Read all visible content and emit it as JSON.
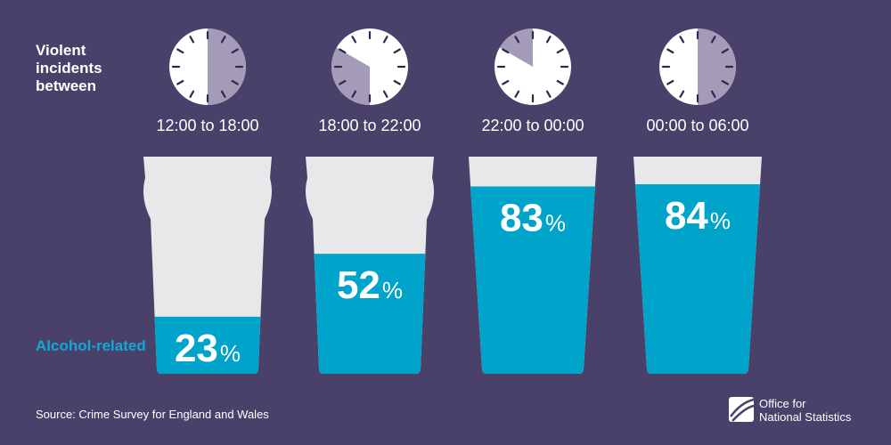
{
  "colors": {
    "background": "#4a416b",
    "glass": "#e8e8ea",
    "fill": "#00a3c9",
    "clock_face": "#ffffff",
    "clock_shade": "#a49bb8",
    "text": "#ffffff",
    "accent_text": "#12a8d4"
  },
  "row_label": [
    "Violent",
    "incidents",
    "between"
  ],
  "series_label": "Alcohol-related",
  "source": "Source: Crime Survey for England and Wales",
  "logo": {
    "line1": "Office for",
    "line2": "National Statistics",
    "icon": "ons-logo-icon"
  },
  "percent_sign": "%",
  "chart_data": {
    "type": "bar",
    "categories": [
      "12:00 to 18:00",
      "18:00 to 22:00",
      "22:00 to 00:00",
      "00:00 to 06:00"
    ],
    "values": [
      23,
      52,
      83,
      84
    ],
    "unit": "%",
    "ylim": [
      0,
      100
    ],
    "series": [
      {
        "name": "Alcohol-related",
        "values": [
          23,
          52,
          83,
          84
        ]
      }
    ],
    "clock_spans": [
      [
        12,
        18
      ],
      [
        18,
        22
      ],
      [
        22,
        24
      ],
      [
        0,
        6
      ]
    ]
  }
}
